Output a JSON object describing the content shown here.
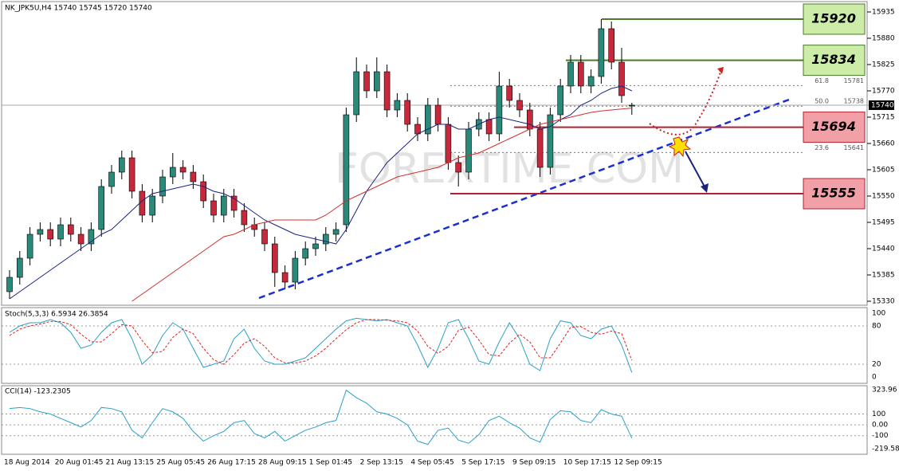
{
  "chart_data": {
    "type": "candlestick",
    "title": "NK_JPK5U,H4  15740 15745 15720 15740",
    "watermark": "FOREXTIME.COM",
    "ylim": [
      15330,
      15935
    ],
    "yticks": [
      15935,
      15880,
      15825,
      15770,
      15715,
      15660,
      15605,
      15550,
      15495,
      15440,
      15385,
      15330
    ],
    "last_price": 15740,
    "x_labels": [
      "18 Aug 2014",
      "20 Aug 01:45",
      "21 Aug 13:15",
      "25 Aug 05:45",
      "26 Aug 17:15",
      "28 Aug 09:15",
      "1 Sep 01:45",
      "2 Sep 13:15",
      "4 Sep 05:45",
      "5 Sep 17:15",
      "9 Sep 09:15",
      "10 Sep 17:15",
      "12 Sep 09:15"
    ],
    "open": [
      15350,
      15380,
      15420,
      15470,
      15480,
      15460,
      15490,
      15470,
      15450,
      15480,
      15570,
      15600,
      15630,
      15560,
      15510,
      15550,
      15590,
      15610,
      15600,
      15580,
      15540,
      15510,
      15550,
      15520,
      15490,
      15480,
      15450,
      15390,
      15370,
      15420,
      15440,
      15450,
      15470,
      15490,
      15720,
      15810,
      15770,
      15810,
      15730,
      15750,
      15700,
      15680,
      15740,
      15700,
      15620,
      15600,
      15690,
      15710,
      15680,
      15780,
      15750,
      15730,
      15690,
      15610,
      15720,
      15780,
      15830,
      15780,
      15800,
      15900,
      15830,
      15740
    ],
    "high": [
      15395,
      15435,
      15485,
      15495,
      15495,
      15505,
      15505,
      15485,
      15495,
      15585,
      15615,
      15645,
      15645,
      15575,
      15565,
      15605,
      15640,
      15625,
      15615,
      15595,
      15555,
      15565,
      15565,
      15535,
      15505,
      15495,
      15465,
      15405,
      15435,
      15455,
      15465,
      15485,
      15495,
      15735,
      15840,
      15825,
      15840,
      15825,
      15765,
      15765,
      15715,
      15755,
      15755,
      15715,
      15635,
      15705,
      15725,
      15725,
      15810,
      15795,
      15765,
      15745,
      15705,
      15735,
      15795,
      15845,
      15845,
      15815,
      15920,
      15915,
      15860,
      15745
    ],
    "low": [
      15335,
      15365,
      15405,
      15455,
      15445,
      15445,
      15455,
      15435,
      15435,
      15465,
      15555,
      15585,
      15545,
      15495,
      15495,
      15535,
      15575,
      15585,
      15565,
      15525,
      15495,
      15495,
      15505,
      15475,
      15465,
      15435,
      15360,
      15355,
      15355,
      15405,
      15425,
      15435,
      15455,
      15475,
      15705,
      15755,
      15755,
      15715,
      15715,
      15685,
      15665,
      15665,
      15685,
      15605,
      15570,
      15585,
      15675,
      15665,
      15665,
      15735,
      15715,
      15675,
      15590,
      15595,
      15705,
      15765,
      15765,
      15765,
      15785,
      15815,
      15745,
      15720
    ],
    "close": [
      15380,
      15420,
      15470,
      15480,
      15460,
      15490,
      15470,
      15450,
      15480,
      15570,
      15600,
      15630,
      15560,
      15510,
      15550,
      15590,
      15610,
      15600,
      15580,
      15540,
      15510,
      15550,
      15520,
      15490,
      15480,
      15450,
      15390,
      15370,
      15420,
      15440,
      15450,
      15470,
      15480,
      15720,
      15810,
      15770,
      15810,
      15730,
      15750,
      15700,
      15680,
      15740,
      15700,
      15620,
      15600,
      15690,
      15710,
      15680,
      15780,
      15750,
      15730,
      15690,
      15610,
      15720,
      15780,
      15830,
      15780,
      15800,
      15900,
      15830,
      15760,
      15740
    ],
    "bull_color": "#2a8a7a",
    "bear_color": "#c8283c",
    "series": [
      {
        "color": "#1a237e",
        "values": [
          15335,
          15350,
          15365,
          15380,
          15395,
          15410,
          15425,
          15440,
          15455,
          15470,
          15480,
          15500,
          15520,
          15540,
          15555,
          15560,
          15565,
          15570,
          15575,
          15570,
          15560,
          15555,
          15545,
          15530,
          15515,
          15500,
          15490,
          15480,
          15470,
          15465,
          15460,
          15455,
          15450,
          15480,
          15520,
          15560,
          15590,
          15620,
          15640,
          15660,
          15680,
          15690,
          15700,
          15700,
          15690,
          15690,
          15700,
          15710,
          15715,
          15710,
          15705,
          15700,
          15690,
          15695,
          15710,
          15720,
          15740,
          15750,
          15765,
          15775,
          15780,
          15770
        ]
      },
      {
        "color": "#d32f2f",
        "values": [
          null,
          null,
          null,
          null,
          null,
          null,
          null,
          null,
          null,
          null,
          null,
          null,
          15330,
          15345,
          15360,
          15375,
          15390,
          15405,
          15420,
          15435,
          15450,
          15465,
          15470,
          15480,
          15490,
          15495,
          15500,
          15500,
          15500,
          15500,
          15500,
          15510,
          15525,
          15540,
          15550,
          15560,
          15570,
          15580,
          15590,
          15595,
          15600,
          15605,
          15610,
          15620,
          15630,
          15635,
          15640,
          15650,
          15660,
          15670,
          15680,
          15690,
          15700,
          15705,
          15710,
          15715,
          15720,
          15725,
          15728,
          15730,
          15732,
          15734
        ]
      }
    ],
    "levels": [
      {
        "value": 15920,
        "color": "#cdeca8",
        "line": "#4a7a2a"
      },
      {
        "value": 15834,
        "color": "#cdeca8",
        "line": "#4a7a2a"
      },
      {
        "value": 15694,
        "color": "#f2a0a8",
        "line": "#b02030"
      },
      {
        "value": 15555,
        "color": "#f2a0a8",
        "line": "#b02030"
      }
    ],
    "fib": [
      {
        "label": "61.8",
        "value": 15781
      },
      {
        "label": "50.0",
        "value": 15738
      },
      {
        "label": "23.6",
        "value": 15641
      }
    ],
    "stoch": {
      "title": "Stoch(5,3,3) 6.5934 26.3854",
      "ylim": [
        0,
        100
      ],
      "yticks": [
        100,
        80,
        20,
        0
      ],
      "main": [
        70,
        80,
        85,
        85,
        90,
        85,
        70,
        45,
        50,
        70,
        85,
        90,
        60,
        20,
        35,
        65,
        85,
        75,
        45,
        15,
        20,
        25,
        60,
        75,
        45,
        25,
        20,
        20,
        25,
        30,
        45,
        60,
        75,
        88,
        92,
        90,
        88,
        90,
        85,
        80,
        50,
        15,
        45,
        85,
        90,
        60,
        25,
        20,
        55,
        85,
        60,
        20,
        10,
        60,
        88,
        85,
        65,
        60,
        75,
        80,
        50,
        7
      ],
      "signal": [
        65,
        75,
        80,
        83,
        87,
        87,
        82,
        67,
        55,
        55,
        68,
        82,
        80,
        57,
        38,
        40,
        62,
        75,
        68,
        45,
        27,
        20,
        35,
        53,
        60,
        48,
        30,
        22,
        22,
        25,
        33,
        45,
        60,
        74,
        85,
        90,
        90,
        89,
        88,
        85,
        72,
        48,
        37,
        48,
        73,
        78,
        58,
        35,
        33,
        53,
        67,
        55,
        30,
        30,
        53,
        78,
        79,
        70,
        67,
        72,
        68,
        26
      ]
    },
    "cci": {
      "title": "CCI(14) -123.2305",
      "ylim": [
        -219.585,
        323.96
      ],
      "yticks": [
        323.96,
        100,
        {
          "value": 0,
          "label": "0.00"
        },
        -100,
        -219.585
      ],
      "values": [
        150,
        160,
        150,
        120,
        100,
        60,
        20,
        -20,
        40,
        160,
        150,
        120,
        -50,
        -120,
        20,
        150,
        120,
        60,
        -60,
        -150,
        -100,
        -60,
        20,
        40,
        -80,
        -120,
        -60,
        -150,
        -100,
        -50,
        -20,
        20,
        40,
        320,
        250,
        200,
        120,
        100,
        60,
        0,
        -150,
        -180,
        -50,
        -30,
        -140,
        -170,
        -90,
        40,
        80,
        20,
        -30,
        -120,
        -160,
        50,
        130,
        120,
        40,
        20,
        140,
        100,
        80,
        -123
      ]
    }
  }
}
